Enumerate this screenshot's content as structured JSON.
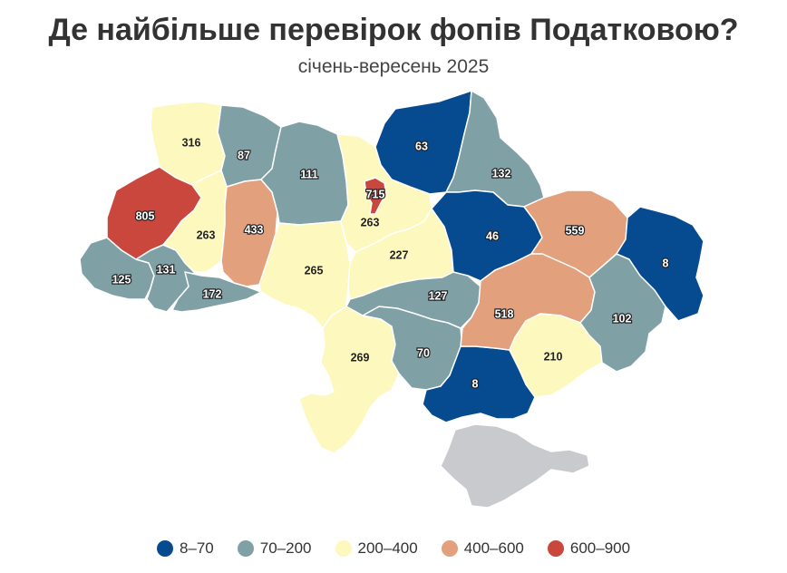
{
  "title": "Де найбільше перевірок фопів Податковою?",
  "subtitle": "січень-вересень 2025",
  "colors": {
    "c1": "#064b8f",
    "c2": "#7fa1a6",
    "c3": "#fcf8be",
    "c4": "#e2a07d",
    "c5": "#c9473d",
    "crimea": "#c9cacd",
    "border": "#ffffff"
  },
  "legend": [
    {
      "label": "8–70",
      "color": "#064b8f"
    },
    {
      "label": "70–200",
      "color": "#7fa1a6"
    },
    {
      "label": "200–400",
      "color": "#fcf8be"
    },
    {
      "label": "400–600",
      "color": "#e2a07d"
    },
    {
      "label": "600–900",
      "color": "#c9473d"
    }
  ],
  "regions": [
    {
      "value": "316",
      "cls": "c3"
    },
    {
      "value": "87",
      "cls": "c2"
    },
    {
      "value": "111",
      "cls": "c2"
    },
    {
      "value": "63",
      "cls": "c1"
    },
    {
      "value": "132",
      "cls": "c2"
    },
    {
      "value": "805",
      "cls": "c5"
    },
    {
      "value": "263",
      "cls": "c3"
    },
    {
      "value": "433",
      "cls": "c4"
    },
    {
      "value": "715",
      "cls": "c5"
    },
    {
      "value": "263",
      "cls": "c3"
    },
    {
      "value": "46",
      "cls": "c1"
    },
    {
      "value": "559",
      "cls": "c4"
    },
    {
      "value": "8",
      "cls": "c1"
    },
    {
      "value": "125",
      "cls": "c2"
    },
    {
      "value": "131",
      "cls": "c2"
    },
    {
      "value": "172",
      "cls": "c2"
    },
    {
      "value": "265",
      "cls": "c3"
    },
    {
      "value": "227",
      "cls": "c3"
    },
    {
      "value": "127",
      "cls": "c2"
    },
    {
      "value": "518",
      "cls": "c4"
    },
    {
      "value": "102",
      "cls": "c2"
    },
    {
      "value": "269",
      "cls": "c3"
    },
    {
      "value": "70",
      "cls": "c2"
    },
    {
      "value": "210",
      "cls": "c3"
    },
    {
      "value": "8",
      "cls": "c1"
    }
  ]
}
